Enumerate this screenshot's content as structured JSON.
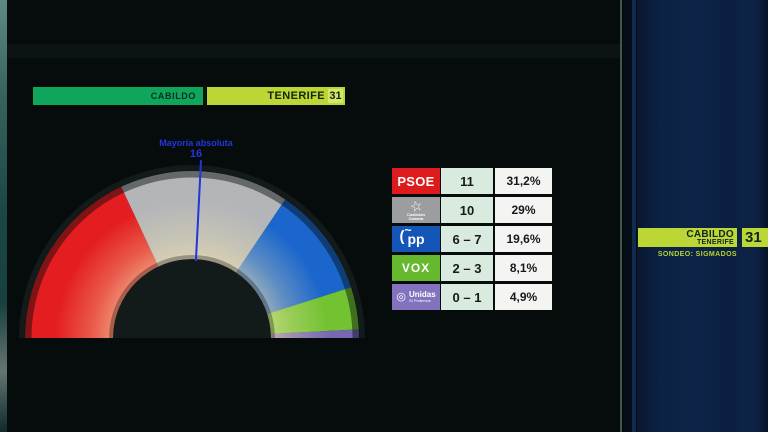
{
  "header": {
    "region_label": "CABILDO",
    "island_label": "TENERIFE",
    "total_seats": "31"
  },
  "majority": {
    "label": "Mayoría absoluta",
    "value": "16"
  },
  "chart_data": {
    "type": "hemicycle",
    "title": "CABILDO TENERIFE",
    "total_seats": 31,
    "majority_seats": 16,
    "majority_line_color": "#2136dc",
    "parties": [
      {
        "name": "PSOE",
        "seats_label": "11",
        "seats_mid": 11,
        "percent": "31,2%",
        "color": "#e41d20",
        "box_color": "#dd1a1c",
        "logo": {
          "style": "psoe",
          "text": "PSOE"
        }
      },
      {
        "name": "Coalición Canaria",
        "seats_label": "10",
        "seats_mid": 10,
        "percent": "29%",
        "color": "#b3b5b8",
        "box_color": "#9b9da0",
        "logo": {
          "style": "cc",
          "icon": "star",
          "line1": "Coalición",
          "line2": "Canaria"
        }
      },
      {
        "name": "PP",
        "seats_label": "6 – 7",
        "seats_mid": 6.5,
        "percent": "19,6%",
        "color": "#1b66cc",
        "box_color": "#1356b8",
        "logo": {
          "style": "pp",
          "text": "pp"
        }
      },
      {
        "name": "VOX",
        "seats_label": "2 – 3",
        "seats_mid": 2.5,
        "percent": "8,1%",
        "color": "#72c232",
        "box_color": "#66b92f",
        "logo": {
          "style": "vox",
          "text": "VOX"
        }
      },
      {
        "name": "Unidas Sí Podemos",
        "seats_label": "0 – 1",
        "seats_mid": 0.5,
        "percent": "4,9%",
        "color": "#7668b4",
        "box_color": "#8372bd",
        "logo": {
          "style": "up",
          "icon": "circle",
          "line1": "Unidas",
          "line2": "Sí Podemos"
        }
      }
    ]
  },
  "side_panel": {
    "region_label": "CABILDO",
    "island_label": "TENERIFE",
    "total_seats": "31",
    "source": "SONDEO: SIGMADOS"
  }
}
